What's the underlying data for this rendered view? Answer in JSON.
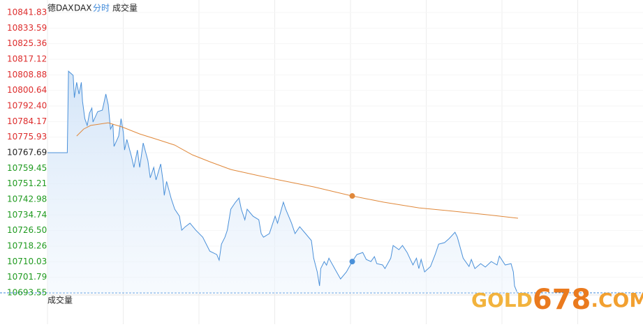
{
  "chart_data": {
    "type": "line",
    "header": [
      "德DAX",
      "DAX",
      "分时",
      "成交量"
    ],
    "volume_label": "成交量",
    "watermark": [
      "GOLD",
      "678",
      ".COM"
    ],
    "prev_close": 10767.69,
    "up_color": "#dd2c2c",
    "down_color": "#1f9a1f",
    "flat_color": "#222222",
    "xlim": [
      0,
      510
    ],
    "ylim": [
      10693.55,
      10841.83
    ],
    "yticks": [
      10841.83,
      10833.59,
      10825.36,
      10817.12,
      10808.88,
      10800.64,
      {
        "value": 10792.4,
        "label": "10792.40"
      },
      10784.17,
      10775.93,
      10767.69,
      10759.45,
      10751.21,
      10742.98,
      10734.74,
      {
        "value": 10726.5,
        "label": "10726.50"
      },
      10718.26,
      10710.03,
      10701.79,
      10693.55
    ],
    "cursor_x": 261,
    "series": [
      {
        "name": "price",
        "color": "#4a90d9",
        "x": [
          0,
          17,
          18,
          22,
          23,
          25,
          27,
          29,
          30,
          32,
          34,
          36,
          38,
          39,
          43,
          47,
          50,
          52,
          54,
          56,
          57,
          61,
          63,
          65,
          66,
          68,
          72,
          74,
          77,
          79,
          82,
          86,
          88,
          91,
          93,
          97,
          99,
          100,
          102,
          106,
          109,
          113,
          115,
          118,
          122,
          127,
          133,
          139,
          145,
          147,
          149,
          152,
          154,
          157,
          161,
          164,
          166,
          169,
          171,
          176,
          181,
          183,
          185,
          190,
          195,
          197,
          202,
          204,
          209,
          212,
          216,
          221,
          226,
          228,
          231,
          233,
          234,
          237,
          239,
          241,
          246,
          251,
          256,
          261,
          265,
          270,
          273,
          277,
          280,
          282,
          287,
          289,
          294,
          296,
          301,
          304,
          308,
          313,
          316,
          318,
          320,
          323,
          328,
          332,
          335,
          340,
          344,
          349,
          351,
          356,
          361,
          363,
          366,
          371,
          375,
          380,
          385,
          387,
          392,
          397,
          399,
          400,
          402
        ],
        "values": [
          10767.69,
          10767.69,
          10810.8,
          10808.6,
          10796.8,
          10804.9,
          10798.7,
          10804.9,
          10794.9,
          10785.7,
          10782.1,
          10788.7,
          10791.3,
          10783.9,
          10789.4,
          10790.2,
          10798.7,
          10793.1,
          10780.2,
          10782.8,
          10771.0,
          10776.5,
          10785.7,
          10778.4,
          10769.1,
          10774.7,
          10765.5,
          10759.9,
          10769.1,
          10759.9,
          10772.8,
          10763.6,
          10754.4,
          10759.9,
          10753.3,
          10761.7,
          10752.5,
          10745.1,
          10752.5,
          10743.3,
          10737.8,
          10734.1,
          10726.7,
          10728.5,
          10730.4,
          10726.7,
          10723.0,
          10715.6,
          10713.8,
          10710.8,
          10719.3,
          10723.0,
          10726.7,
          10737.8,
          10741.5,
          10743.7,
          10737.8,
          10732.2,
          10737.8,
          10734.1,
          10732.2,
          10724.9,
          10723.0,
          10724.9,
          10734.1,
          10730.4,
          10741.5,
          10737.8,
          10730.4,
          10724.9,
          10728.5,
          10724.9,
          10721.2,
          10711.9,
          10704.6,
          10697.2,
          10706.4,
          10710.1,
          10708.2,
          10711.9,
          10706.4,
          10700.9,
          10704.6,
          10710.1,
          10713.8,
          10714.9,
          10711.2,
          10710.1,
          10712.7,
          10709.0,
          10708.3,
          10706.4,
          10711.9,
          10718.6,
          10716.4,
          10718.6,
          10714.9,
          10708.3,
          10711.9,
          10706.4,
          10711.2,
          10704.6,
          10707.5,
          10713.8,
          10719.3,
          10720.1,
          10722.3,
          10725.6,
          10723.0,
          10711.9,
          10707.5,
          10711.2,
          10706.4,
          10709.0,
          10707.2,
          10710.1,
          10708.3,
          10713.0,
          10708.3,
          10709.0,
          10704.6,
          10697.2,
          10694.1
        ]
      },
      {
        "name": "average",
        "color": "#e0883a",
        "x": [
          25,
          31,
          37,
          52,
          64,
          79,
          94,
          109,
          124,
          139,
          157,
          181,
          198,
          228,
          261,
          288,
          318,
          348,
          378,
          403
        ],
        "values": [
          10776.5,
          10780.2,
          10782.1,
          10783.5,
          10781.3,
          10777.6,
          10774.7,
          10771.7,
          10766.6,
          10762.9,
          10758.8,
          10755.5,
          10753.3,
          10749.6,
          10744.8,
          10741.5,
          10738.5,
          10736.7,
          10734.8,
          10733.0
        ]
      }
    ]
  }
}
